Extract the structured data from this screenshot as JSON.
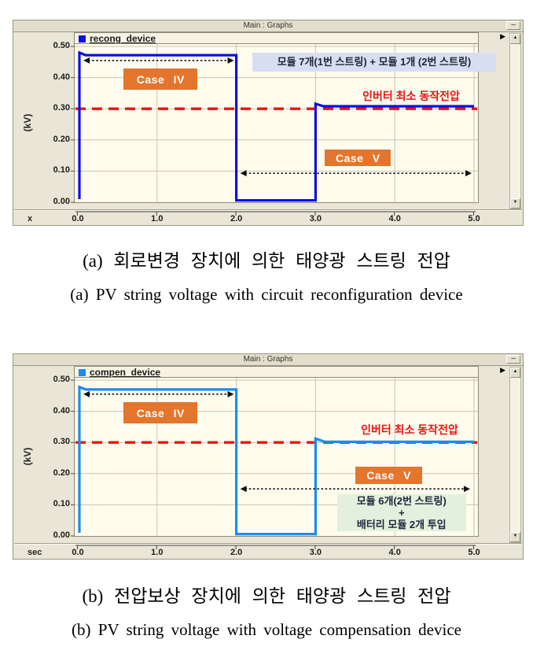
{
  "ui": {
    "minimize_glyph": "–",
    "scroll_up_glyph": "▲",
    "scroll_down_glyph": "▼",
    "pan_right_glyph": "▶"
  },
  "chart_data": [
    {
      "type": "line",
      "window_title": "Main : Graphs",
      "xlabel": "x",
      "ylabel": "(kV)",
      "xlim": [
        0,
        5.05
      ],
      "ylim": [
        0,
        0.508
      ],
      "grid": true,
      "plot_bg": "#fffcee",
      "xticks": {
        "values": [
          0,
          1,
          2,
          3,
          4,
          5
        ],
        "labels": [
          "0.0",
          "1.0",
          "2.0",
          "3.0",
          "4.0",
          "5.0"
        ]
      },
      "yticks": {
        "values": [
          0,
          0.1,
          0.2,
          0.3,
          0.4,
          0.5
        ],
        "labels": [
          "0.00",
          "0.10",
          "0.20",
          "0.30",
          "0.40",
          "0.50"
        ]
      },
      "series": [
        {
          "name": "recong_device",
          "color": "#0a10e6",
          "points": [
            [
              0.02,
              0.01
            ],
            [
              0.02,
              0.48
            ],
            [
              0.1,
              0.472
            ],
            [
              2,
              0.472
            ],
            [
              2,
              0.006
            ],
            [
              3,
              0.006
            ],
            [
              3,
              0.316
            ],
            [
              3.1,
              0.308
            ],
            [
              5,
              0.308
            ]
          ]
        }
      ],
      "ref_line": {
        "y": 0.3,
        "color": "#ee1111",
        "style": "dashed"
      },
      "annotations": [
        {
          "id": "case-iv-box",
          "kind": "box",
          "label": "Case IV",
          "bg": "#e4752c",
          "fg": "#ffffff",
          "x": [
            0.58,
            1.51
          ],
          "y": [
            0.36,
            0.43
          ]
        },
        {
          "id": "case-iv-span-arrow",
          "kind": "arrow",
          "x": [
            0.07,
            1.97
          ],
          "y": 0.455
        },
        {
          "id": "case-v-box",
          "kind": "box",
          "label": "Case V",
          "bg": "#e4752c",
          "fg": "#ffffff",
          "x": [
            3.12,
            3.95
          ],
          "y": [
            0.115,
            0.168
          ]
        },
        {
          "id": "case-v-span-arrow",
          "kind": "arrow",
          "x": [
            2.05,
            4.97
          ],
          "y": 0.093
        },
        {
          "id": "string-config-box",
          "kind": "box",
          "label": "모듈 7개(1번 스트링) + 모듈 1개 (2번 스트링)",
          "bg": "#d6def2",
          "fg": "#1f2430",
          "x": [
            2.2,
            5.28
          ],
          "y": [
            0.418,
            0.481
          ]
        },
        {
          "id": "inverter-min-voltage-label",
          "kind": "text",
          "label": "인버터 최소 동작전압",
          "fg": "#ee1111",
          "anchor": "end",
          "x": 4.82,
          "y": 0.315
        }
      ]
    },
    {
      "type": "line",
      "window_title": "Main : Graphs",
      "xlabel": "sec",
      "ylabel": "(kV)",
      "xlim": [
        0,
        5.05
      ],
      "ylim": [
        0,
        0.508
      ],
      "grid": true,
      "plot_bg": "#fffcee",
      "xticks": {
        "values": [
          0,
          1,
          2,
          3,
          4,
          5
        ],
        "labels": [
          "0.0",
          "1.0",
          "2.0",
          "3.0",
          "4.0",
          "5.0"
        ]
      },
      "yticks": {
        "values": [
          0,
          0.1,
          0.2,
          0.3,
          0.4,
          0.5
        ],
        "labels": [
          "0.00",
          "0.10",
          "0.20",
          "0.30",
          "0.40",
          "0.50"
        ]
      },
      "series": [
        {
          "name": "compen_device",
          "color": "#1b8cf0",
          "points": [
            [
              0.02,
              0.01
            ],
            [
              0.02,
              0.478
            ],
            [
              0.1,
              0.47
            ],
            [
              2,
              0.47
            ],
            [
              2,
              0.006
            ],
            [
              3,
              0.006
            ],
            [
              3,
              0.312
            ],
            [
              3.12,
              0.302
            ],
            [
              5,
              0.302
            ]
          ]
        }
      ],
      "ref_line": {
        "y": 0.3,
        "color": "#ee1111",
        "style": "dashed"
      },
      "annotations": [
        {
          "id": "case-iv-box",
          "kind": "box",
          "label": "Case IV",
          "bg": "#e4752c",
          "fg": "#ffffff",
          "x": [
            0.58,
            1.51
          ],
          "y": [
            0.36,
            0.43
          ]
        },
        {
          "id": "case-iv-span-arrow",
          "kind": "arrow",
          "x": [
            0.07,
            1.97
          ],
          "y": 0.455
        },
        {
          "id": "case-v-box",
          "kind": "box",
          "label": "Case V",
          "bg": "#e4752c",
          "fg": "#ffffff",
          "x": [
            3.5,
            4.35
          ],
          "y": [
            0.167,
            0.223
          ]
        },
        {
          "id": "case-v-span-arrow",
          "kind": "arrow",
          "x": [
            2.05,
            4.95
          ],
          "y": 0.151
        },
        {
          "id": "compen-config-box",
          "kind": "box",
          "lines": [
            "모듈 6개(2번 스트링)",
            "+",
            "배터리 모듈 2개 투입"
          ],
          "bg": "#e3f0dd",
          "fg": "#20243e",
          "x": [
            3.27,
            4.9
          ],
          "y": [
            0.015,
            0.135
          ]
        },
        {
          "id": "inverter-min-voltage-label",
          "kind": "text",
          "label": "인버터 최소 동작전압",
          "fg": "#ee1111",
          "anchor": "end",
          "x": 4.8,
          "y": 0.315
        }
      ]
    }
  ],
  "captions": [
    {
      "ko": "(a) 회로변경 장치에 의한 태양광 스트링 전압",
      "en": "(a) PV string voltage with circuit reconfiguration device"
    },
    {
      "ko": "(b) 전압보상 장치에 의한 태양광 스트링 전압",
      "en": "(b) PV string voltage with voltage compensation device"
    }
  ]
}
